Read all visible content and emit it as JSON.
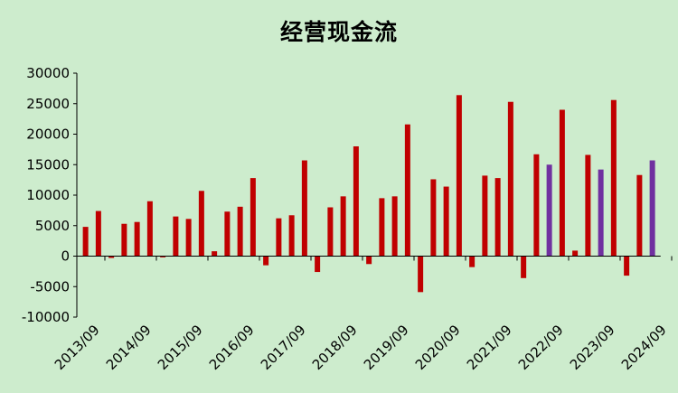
{
  "chart_data": {
    "type": "bar",
    "title": "经营现金流",
    "xlabel": "",
    "ylabel": "",
    "ylim": [
      -10000,
      30000
    ],
    "yticks": [
      30000,
      25000,
      20000,
      15000,
      10000,
      5000,
      0,
      -5000,
      -10000
    ],
    "x_tick_labels": [
      "2013/09",
      "2014/09",
      "2015/09",
      "2016/09",
      "2017/09",
      "2018/09",
      "2019/09",
      "2020/09",
      "2021/09",
      "2022/09",
      "2023/09",
      "2024/09"
    ],
    "colors": {
      "actual": "#c00000",
      "highlight": "#7030a0",
      "background": "#cdeccd"
    },
    "bars": [
      {
        "period": "2013/06",
        "value": 4800,
        "kind": "actual"
      },
      {
        "period": "2013/09",
        "value": 7400,
        "kind": "actual"
      },
      {
        "period": "2013/12",
        "value": -300,
        "kind": "actual"
      },
      {
        "period": "2014/03",
        "value": 5300,
        "kind": "actual"
      },
      {
        "period": "2014/06",
        "value": 5600,
        "kind": "actual"
      },
      {
        "period": "2014/09",
        "value": 9000,
        "kind": "actual"
      },
      {
        "period": "2014/12",
        "value": -200,
        "kind": "actual"
      },
      {
        "period": "2015/03",
        "value": 6500,
        "kind": "actual"
      },
      {
        "period": "2015/06",
        "value": 6100,
        "kind": "actual"
      },
      {
        "period": "2015/09",
        "value": 10700,
        "kind": "actual"
      },
      {
        "period": "2015/12",
        "value": 800,
        "kind": "actual"
      },
      {
        "period": "2016/03",
        "value": 7300,
        "kind": "actual"
      },
      {
        "period": "2016/06",
        "value": 8100,
        "kind": "actual"
      },
      {
        "period": "2016/09",
        "value": 12800,
        "kind": "actual"
      },
      {
        "period": "2016/12",
        "value": -1500,
        "kind": "actual"
      },
      {
        "period": "2017/03",
        "value": 6200,
        "kind": "actual"
      },
      {
        "period": "2017/06",
        "value": 6700,
        "kind": "actual"
      },
      {
        "period": "2017/09",
        "value": 15700,
        "kind": "actual"
      },
      {
        "period": "2017/12",
        "value": -2600,
        "kind": "actual"
      },
      {
        "period": "2018/03",
        "value": 8000,
        "kind": "actual"
      },
      {
        "period": "2018/06",
        "value": 9800,
        "kind": "actual"
      },
      {
        "period": "2018/09",
        "value": 18000,
        "kind": "actual"
      },
      {
        "period": "2018/12",
        "value": -1300,
        "kind": "actual"
      },
      {
        "period": "2019/03",
        "value": 9500,
        "kind": "actual"
      },
      {
        "period": "2019/06",
        "value": 9800,
        "kind": "actual"
      },
      {
        "period": "2019/09",
        "value": 21600,
        "kind": "actual"
      },
      {
        "period": "2019/12",
        "value": -5900,
        "kind": "actual"
      },
      {
        "period": "2020/03",
        "value": 12600,
        "kind": "actual"
      },
      {
        "period": "2020/06",
        "value": 11400,
        "kind": "actual"
      },
      {
        "period": "2020/09",
        "value": 26400,
        "kind": "actual"
      },
      {
        "period": "2020/12",
        "value": -1800,
        "kind": "actual"
      },
      {
        "period": "2021/03",
        "value": 13200,
        "kind": "actual"
      },
      {
        "period": "2021/06",
        "value": 12800,
        "kind": "actual"
      },
      {
        "period": "2021/09",
        "value": 25300,
        "kind": "actual"
      },
      {
        "period": "2021/12",
        "value": -3600,
        "kind": "actual"
      },
      {
        "period": "2022/03",
        "value": 16700,
        "kind": "actual"
      },
      {
        "period": "2022/06",
        "value": 15000,
        "kind": "highlight"
      },
      {
        "period": "2022/09",
        "value": 24000,
        "kind": "actual"
      },
      {
        "period": "2022/12",
        "value": 900,
        "kind": "actual"
      },
      {
        "period": "2023/03",
        "value": 16600,
        "kind": "actual"
      },
      {
        "period": "2023/06",
        "value": 14200,
        "kind": "highlight"
      },
      {
        "period": "2023/09",
        "value": 25600,
        "kind": "actual"
      },
      {
        "period": "2023/12",
        "value": -3200,
        "kind": "actual"
      },
      {
        "period": "2024/03",
        "value": 13300,
        "kind": "actual"
      },
      {
        "period": "2024/06",
        "value": 15700,
        "kind": "highlight"
      }
    ]
  }
}
